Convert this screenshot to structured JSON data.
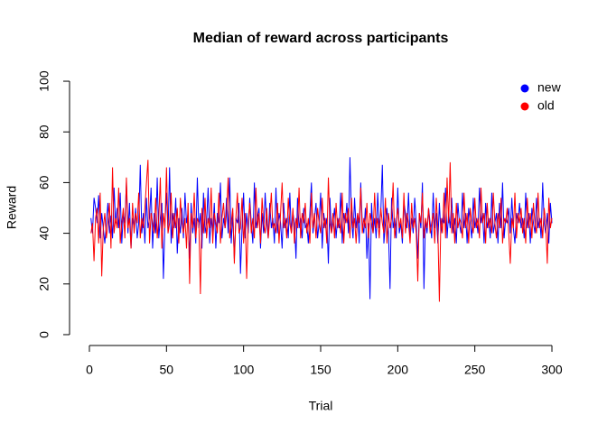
{
  "chart_data": {
    "type": "line",
    "title": "Median of reward across participants",
    "xlabel": "Trial",
    "ylabel": "Reward",
    "xlim": [
      -11,
      312
    ],
    "ylim": [
      -4,
      104
    ],
    "xticks": [
      0,
      50,
      100,
      150,
      200,
      250,
      300
    ],
    "yticks": [
      0,
      20,
      40,
      60,
      80,
      100
    ],
    "legend": "topright",
    "x": [
      1,
      2,
      3,
      4,
      5,
      6,
      7,
      8,
      9,
      10,
      11,
      12,
      13,
      14,
      15,
      16,
      17,
      18,
      19,
      20,
      21,
      22,
      23,
      24,
      25,
      26,
      27,
      28,
      29,
      30,
      31,
      32,
      33,
      34,
      35,
      36,
      37,
      38,
      39,
      40,
      41,
      42,
      43,
      44,
      45,
      46,
      47,
      48,
      49,
      50,
      51,
      52,
      53,
      54,
      55,
      56,
      57,
      58,
      59,
      60,
      61,
      62,
      63,
      64,
      65,
      66,
      67,
      68,
      69,
      70,
      71,
      72,
      73,
      74,
      75,
      76,
      77,
      78,
      79,
      80,
      81,
      82,
      83,
      84,
      85,
      86,
      87,
      88,
      89,
      90,
      91,
      92,
      93,
      94,
      95,
      96,
      97,
      98,
      99,
      100,
      101,
      102,
      103,
      104,
      105,
      106,
      107,
      108,
      109,
      110,
      111,
      112,
      113,
      114,
      115,
      116,
      117,
      118,
      119,
      120,
      121,
      122,
      123,
      124,
      125,
      126,
      127,
      128,
      129,
      130,
      131,
      132,
      133,
      134,
      135,
      136,
      137,
      138,
      139,
      140,
      141,
      142,
      143,
      144,
      145,
      146,
      147,
      148,
      149,
      150,
      151,
      152,
      153,
      154,
      155,
      156,
      157,
      158,
      159,
      160,
      161,
      162,
      163,
      164,
      165,
      166,
      167,
      168,
      169,
      170,
      171,
      172,
      173,
      174,
      175,
      176,
      177,
      178,
      179,
      180,
      181,
      182,
      183,
      184,
      185,
      186,
      187,
      188,
      189,
      190,
      191,
      192,
      193,
      194,
      195,
      196,
      197,
      198,
      199,
      200,
      201,
      202,
      203,
      204,
      205,
      206,
      207,
      208,
      209,
      210,
      211,
      212,
      213,
      214,
      215,
      216,
      217,
      218,
      219,
      220,
      221,
      222,
      223,
      224,
      225,
      226,
      227,
      228,
      229,
      230,
      231,
      232,
      233,
      234,
      235,
      236,
      237,
      238,
      239,
      240,
      241,
      242,
      243,
      244,
      245,
      246,
      247,
      248,
      249,
      250,
      251,
      252,
      253,
      254,
      255,
      256,
      257,
      258,
      259,
      260,
      261,
      262,
      263,
      264,
      265,
      266,
      267,
      268,
      269,
      270,
      271,
      272,
      273,
      274,
      275,
      276,
      277,
      278,
      279,
      280,
      281,
      282,
      283,
      284,
      285,
      286,
      287,
      288,
      289,
      290,
      291,
      292,
      293,
      294,
      295,
      296,
      297,
      298,
      299,
      300
    ],
    "series": [
      {
        "name": "new",
        "color": "#0000ff",
        "values": [
          46,
          40,
          54,
          50,
          44,
          55,
          38,
          48,
          42,
          36,
          44,
          52,
          40,
          47,
          38,
          58,
          44,
          50,
          42,
          56,
          36,
          48,
          44,
          60,
          40,
          52,
          34,
          46,
          42,
          50,
          38,
          44,
          67,
          40,
          48,
          36,
          54,
          42,
          46,
          58,
          34,
          48,
          40,
          62,
          38,
          46,
          52,
          22,
          44,
          56,
          40,
          66,
          36,
          48,
          42,
          54,
          32,
          46,
          40,
          50,
          38,
          56,
          44,
          48,
          30,
          52,
          40,
          46,
          36,
          62,
          42,
          48,
          34,
          56,
          40,
          44,
          58,
          36,
          46,
          40,
          52,
          34,
          48,
          44,
          60,
          38,
          46,
          42,
          54,
          40,
          62,
          36,
          48,
          30,
          46,
          44,
          52,
          24,
          42,
          56,
          38,
          48,
          40,
          54,
          44,
          36,
          60,
          42,
          46,
          50,
          34,
          48,
          40,
          56,
          44,
          38,
          52,
          42,
          46,
          36,
          58,
          40,
          48,
          44,
          34,
          52,
          42,
          46,
          38,
          56,
          40,
          48,
          44,
          30,
          54,
          42,
          46,
          38,
          50,
          42,
          44,
          36,
          48,
          60,
          40,
          46,
          52,
          38,
          44,
          56,
          34,
          48,
          42,
          46,
          28,
          54,
          40,
          44,
          50,
          38,
          46,
          42,
          56,
          36,
          48,
          44,
          52,
          40,
          70,
          46,
          38,
          54,
          42,
          48,
          36,
          60,
          44,
          40,
          50,
          30,
          44,
          14,
          52,
          40,
          46,
          38,
          56,
          42,
          48,
          67,
          36,
          44,
          50,
          40,
          18,
          54,
          42,
          46,
          38,
          58,
          40,
          44,
          36,
          52,
          48,
          42,
          56,
          38,
          46,
          40,
          54,
          44,
          30,
          48,
          42,
          60,
          18,
          46,
          40,
          50,
          44,
          38,
          56,
          42,
          48,
          36,
          52,
          40,
          46,
          44,
          58,
          38,
          48,
          42,
          54,
          40,
          46,
          36,
          52,
          44,
          40,
          56,
          42,
          48,
          36,
          50,
          44,
          38,
          54,
          42,
          46,
          40,
          58,
          44,
          48,
          36,
          52,
          42,
          46,
          38,
          56,
          40,
          44,
          48,
          36,
          52,
          42,
          60,
          38,
          46,
          44,
          50,
          40,
          54,
          42,
          36,
          48,
          44,
          52,
          42,
          46,
          38,
          56,
          42,
          48,
          36,
          50,
          44,
          40,
          54,
          42,
          46,
          38,
          60,
          44,
          40,
          48,
          36,
          52,
          44
        ]
      },
      {
        "name": "old",
        "color": "#ff0000",
        "values": [
          40,
          44,
          29,
          46,
          50,
          36,
          56,
          23,
          42,
          48,
          38,
          44,
          52,
          34,
          66,
          40,
          46,
          42,
          58,
          36,
          44,
          50,
          38,
          62,
          42,
          46,
          34,
          52,
          40,
          48,
          44,
          56,
          38,
          46,
          42,
          50,
          60,
          69,
          36,
          48,
          44,
          40,
          54,
          38,
          46,
          62,
          34,
          48,
          42,
          66,
          40,
          44,
          56,
          38,
          48,
          42,
          50,
          36,
          54,
          44,
          40,
          46,
          34,
          52,
          20,
          48,
          42,
          56,
          38,
          46,
          44,
          16,
          50,
          40,
          54,
          38,
          46,
          42,
          58,
          36,
          48,
          44,
          40,
          56,
          36,
          46,
          52,
          42,
          48,
          62,
          38,
          44,
          50,
          28,
          46,
          56,
          40,
          42,
          54,
          36,
          48,
          22,
          44,
          52,
          40,
          46,
          38,
          58,
          42,
          48,
          36,
          54,
          44,
          40,
          50,
          38,
          46,
          56,
          42,
          44,
          40,
          52,
          36,
          48,
          60,
          42,
          46,
          38,
          54,
          44,
          40,
          50,
          36,
          46,
          42,
          58,
          38,
          48,
          44,
          52,
          40,
          46,
          36,
          56,
          42,
          48,
          38,
          50,
          44,
          40,
          54,
          42,
          46,
          36,
          62,
          44,
          40,
          48,
          38,
          52,
          42,
          46,
          40,
          56,
          36,
          48,
          44,
          50,
          38,
          54,
          42,
          46,
          36,
          48,
          44,
          58,
          40,
          46,
          42,
          52,
          38,
          48,
          44,
          40,
          56,
          42,
          46,
          38,
          50,
          44,
          40,
          54,
          36,
          48,
          42,
          46,
          60,
          38,
          44,
          50,
          42,
          46,
          38,
          56,
          40,
          48,
          44,
          36,
          52,
          42,
          46,
          40,
          21,
          48,
          44,
          56,
          38,
          46,
          42,
          50,
          40,
          44,
          48,
          36,
          54,
          42,
          13,
          46,
          40,
          56,
          38,
          62,
          44,
          68,
          40,
          48,
          36,
          52,
          42,
          46,
          44,
          38,
          56,
          42,
          48,
          36,
          50,
          44,
          40,
          54,
          42,
          46,
          38,
          58,
          44,
          48,
          36,
          52,
          42,
          46,
          40,
          56,
          44,
          38,
          48,
          42,
          54,
          36,
          46,
          44,
          50,
          40,
          28,
          46,
          42,
          56,
          38,
          48,
          44,
          50,
          40,
          46,
          36,
          54,
          42,
          48,
          38,
          52,
          44,
          40,
          56,
          42,
          46,
          38,
          50,
          44,
          28,
          54,
          42,
          46
        ]
      }
    ]
  }
}
